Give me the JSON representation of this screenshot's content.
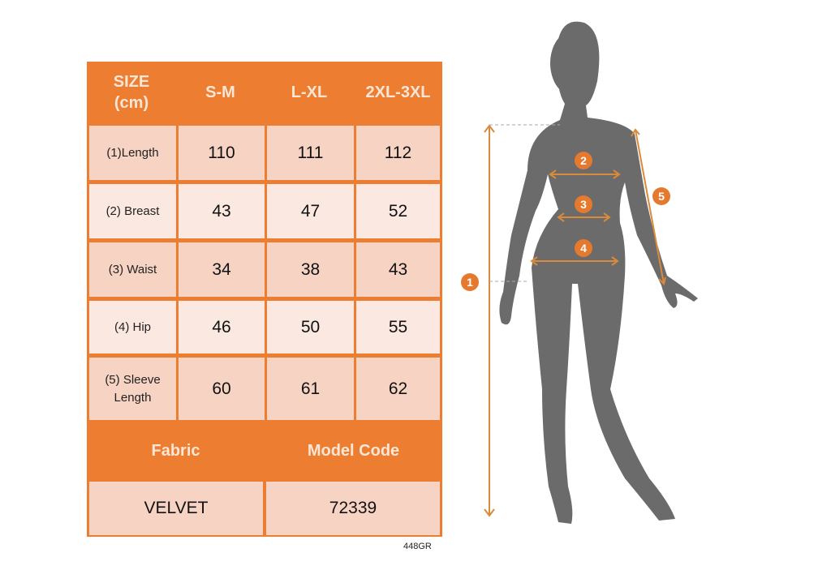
{
  "table": {
    "header": {
      "size_label": "SIZE\n(cm)",
      "sizes": [
        "S-M",
        "L-XL",
        "2XL-3XL"
      ]
    },
    "rows": [
      {
        "label": "(1)Length",
        "values": [
          "110",
          "111",
          "112"
        ]
      },
      {
        "label": "(2) Breast",
        "values": [
          "43",
          "47",
          "52"
        ]
      },
      {
        "label": "(3) Waist",
        "values": [
          "34",
          "38",
          "43"
        ]
      },
      {
        "label": "(4) Hip",
        "values": [
          "46",
          "50",
          "55"
        ]
      },
      {
        "label": "(5) Sleeve Length",
        "values": [
          "60",
          "61",
          "62"
        ]
      }
    ],
    "footer": {
      "fabric_label": "Fabric",
      "model_code_label": "Model Code",
      "fabric": "VELVET",
      "model_code": "72339"
    }
  },
  "product_code": "448GR",
  "figure": {
    "markers": [
      "1",
      "2",
      "3",
      "4",
      "5"
    ]
  },
  "colors": {
    "accent": "#ed7d31",
    "silhouette": "#6b6b6b",
    "row_dark": "#f7d3c3",
    "row_light": "#fbe9e1",
    "measure_line": "#d98a3a"
  }
}
